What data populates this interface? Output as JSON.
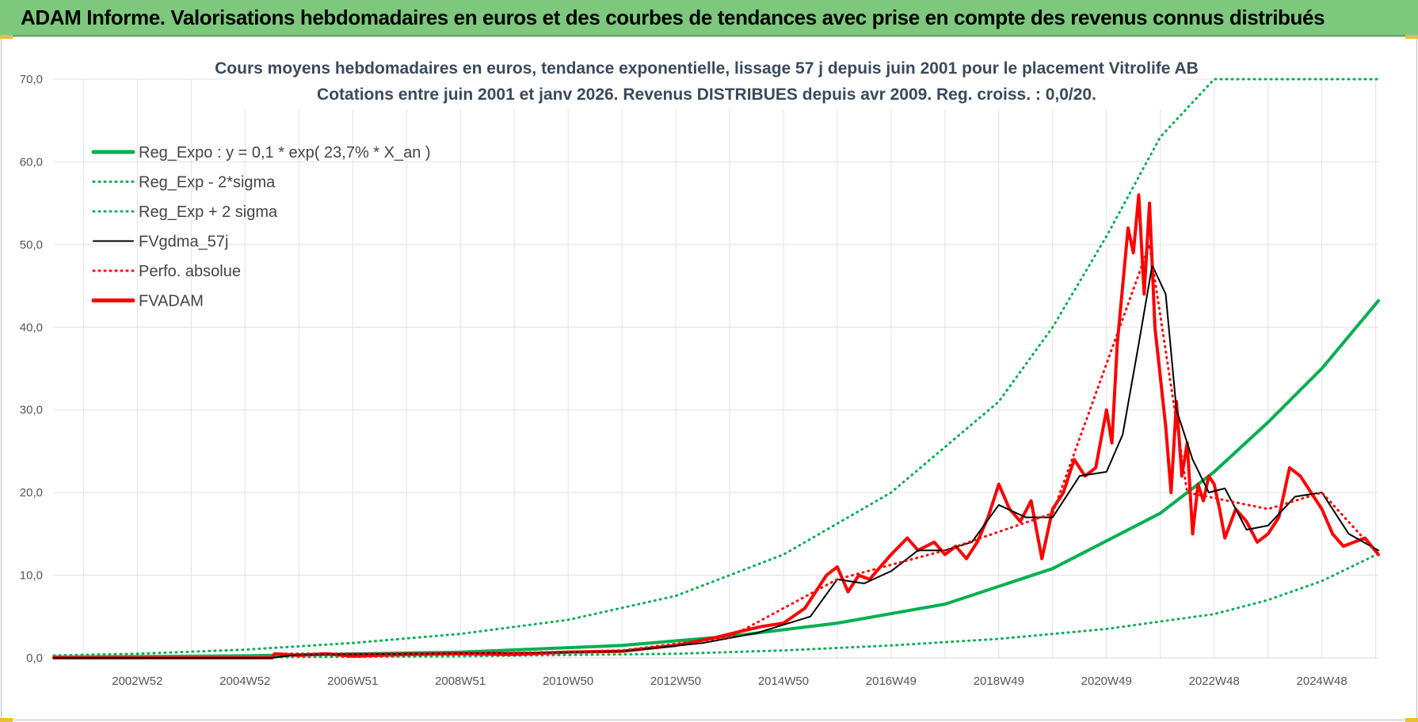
{
  "banner": {
    "title": "ADAM Informe. Valorisations hebdomadaires en euros et des courbes de tendances avec prise en compte des revenus connus distribués"
  },
  "colors": {
    "banner_bg": "#7dc87c",
    "green": "#00b050",
    "black": "#000000",
    "red": "#ff0000",
    "grid": "#e3e3e3"
  },
  "chart_data": {
    "type": "line",
    "title_line1": "Cours moyens hebdomadaires en euros, tendance exponentielle, lissage 57 j depuis juin 2001 pour le placement Vitrolife AB",
    "title_line2": "Cotations entre juin 2001 et janv 2026.  Revenus DISTRIBUES depuis avr 2009.  Reg. croiss. : 0,0/20.",
    "xlabel": "",
    "ylabel": "",
    "ylim": [
      0,
      70
    ],
    "y_ticks": [
      "0,0",
      "10,0",
      "20,0",
      "30,0",
      "40,0",
      "50,0",
      "60,0",
      "70,0"
    ],
    "xlim": [
      2001.45,
      2026.05
    ],
    "x_tick_labels": [
      "2002W52",
      "2004W52",
      "2006W51",
      "2008W51",
      "2010W50",
      "2012W50",
      "2014W50",
      "2016W49",
      "2018W49",
      "2020W49",
      "2022W48",
      "2024W48"
    ],
    "x_tick_positions": [
      2003.0,
      2005.0,
      2007.0,
      2009.0,
      2011.0,
      2013.0,
      2015.0,
      2017.0,
      2019.0,
      2021.0,
      2023.0,
      2025.0
    ],
    "grid": true,
    "legend_position": "top-left",
    "series": [
      {
        "name": "Reg_Expo : y = 0,1 * exp( 23,7% *  X_an )",
        "style": "solid-thick",
        "color": "#00b050",
        "x": [
          2001.45,
          2005,
          2009,
          2012,
          2014,
          2016,
          2018,
          2020,
          2022,
          2023,
          2024,
          2025,
          2026.05
        ],
        "values": [
          0.1,
          0.25,
          0.7,
          1.5,
          2.6,
          4.2,
          6.5,
          10.8,
          17.5,
          22.5,
          28.5,
          35.0,
          43.2
        ]
      },
      {
        "name": "Reg_Exp - 2*sigma",
        "style": "dotted",
        "color": "#00b050",
        "x": [
          2001.45,
          2005,
          2009,
          2013,
          2015,
          2017,
          2019,
          2021,
          2023,
          2024,
          2025,
          2026.05
        ],
        "values": [
          0.02,
          0.08,
          0.2,
          0.5,
          0.9,
          1.5,
          2.3,
          3.5,
          5.3,
          7.0,
          9.3,
          12.6
        ]
      },
      {
        "name": "Reg_Exp + 2 sigma",
        "style": "dotted",
        "color": "#00b050",
        "x": [
          2001.45,
          2003,
          2005,
          2007,
          2009,
          2011,
          2013,
          2015,
          2017,
          2019,
          2020,
          2021,
          2022,
          2023.0,
          2026.05
        ],
        "values": [
          0.3,
          0.5,
          1.0,
          1.8,
          2.9,
          4.6,
          7.5,
          12.5,
          20.0,
          31.0,
          40.0,
          51.0,
          63.0,
          70.0,
          70.0
        ]
      },
      {
        "name": "FVgdma_57j",
        "style": "solid",
        "color": "#000000",
        "x": [
          2001.45,
          2005.5,
          2006.0,
          2008,
          2010,
          2012,
          2013.5,
          2014.5,
          2015.0,
          2015.5,
          2016.0,
          2016.5,
          2017.0,
          2017.5,
          2018.0,
          2018.5,
          2019.0,
          2019.5,
          2020.0,
          2020.5,
          2021.0,
          2021.3,
          2021.6,
          2021.85,
          2022.1,
          2022.3,
          2022.6,
          2022.9,
          2023.2,
          2023.6,
          2024.0,
          2024.5,
          2025.0,
          2025.5,
          2026.05
        ],
        "values": [
          0,
          0,
          0.4,
          0.5,
          0.6,
          0.8,
          1.8,
          3.0,
          4.0,
          5.0,
          9.5,
          9.0,
          10.5,
          13.0,
          13.0,
          14.0,
          18.5,
          17.0,
          17.0,
          22.0,
          22.5,
          27.0,
          38.0,
          47.5,
          44.0,
          30.0,
          24.0,
          20.0,
          20.5,
          15.5,
          16.0,
          19.5,
          20.0,
          15.0,
          13.0
        ]
      },
      {
        "name": "Perfo. absolue",
        "style": "dotted",
        "color": "#ff0000",
        "x": [
          2005.55,
          2008,
          2010,
          2012,
          2014,
          2016,
          2018,
          2020,
          2021.8,
          2022.5,
          2024.0,
          2025.0,
          2026.05
        ],
        "values": [
          0.5,
          0.55,
          0.6,
          0.9,
          2.5,
          9.5,
          13.0,
          17.5,
          50.0,
          20.0,
          18.0,
          20.0,
          12.5
        ]
      },
      {
        "name": "FVADAM",
        "style": "solid-thick",
        "color": "#ff0000",
        "x": [
          2001.45,
          2005.5,
          2005.55,
          2006.0,
          2006.5,
          2007,
          2008,
          2009,
          2010,
          2011,
          2012,
          2013,
          2013.7,
          2014.2,
          2014.6,
          2015.0,
          2015.4,
          2015.6,
          2015.8,
          2016.0,
          2016.2,
          2016.4,
          2016.6,
          2016.8,
          2017.0,
          2017.3,
          2017.5,
          2017.8,
          2018.0,
          2018.2,
          2018.4,
          2018.6,
          2018.8,
          2019.0,
          2019.2,
          2019.4,
          2019.6,
          2019.8,
          2020.0,
          2020.2,
          2020.4,
          2020.6,
          2020.8,
          2021.0,
          2021.1,
          2021.2,
          2021.3,
          2021.4,
          2021.5,
          2021.6,
          2021.7,
          2021.8,
          2021.9,
          2022.0,
          2022.1,
          2022.2,
          2022.3,
          2022.4,
          2022.5,
          2022.6,
          2022.7,
          2022.8,
          2022.9,
          2023.0,
          2023.1,
          2023.2,
          2023.4,
          2023.6,
          2023.8,
          2024.0,
          2024.2,
          2024.4,
          2024.6,
          2024.8,
          2025.0,
          2025.2,
          2025.4,
          2025.6,
          2025.8,
          2026.05
        ],
        "values": [
          0,
          0,
          0.5,
          0.3,
          0.5,
          0.2,
          0.4,
          0.5,
          0.4,
          0.7,
          0.8,
          1.5,
          2.4,
          3.2,
          3.8,
          4.2,
          6.0,
          8.0,
          10.0,
          11.0,
          8.0,
          10.0,
          9.5,
          11.0,
          12.5,
          14.5,
          13.0,
          14.0,
          12.5,
          13.5,
          12.0,
          14.0,
          17.0,
          21.0,
          18.0,
          16.5,
          19.0,
          12.0,
          18.0,
          20.0,
          24.0,
          22.0,
          23.0,
          30.0,
          26.0,
          38.0,
          45.0,
          52.0,
          49.0,
          56.0,
          44.0,
          55.0,
          40.0,
          34.0,
          28.0,
          20.0,
          31.0,
          22.0,
          26.0,
          15.0,
          21.0,
          19.0,
          22.0,
          21.0,
          18.0,
          14.5,
          18.0,
          16.5,
          14.0,
          15.0,
          17.0,
          23.0,
          22.0,
          20.0,
          18.0,
          15.0,
          13.5,
          14.0,
          14.5,
          12.5
        ]
      }
    ]
  }
}
